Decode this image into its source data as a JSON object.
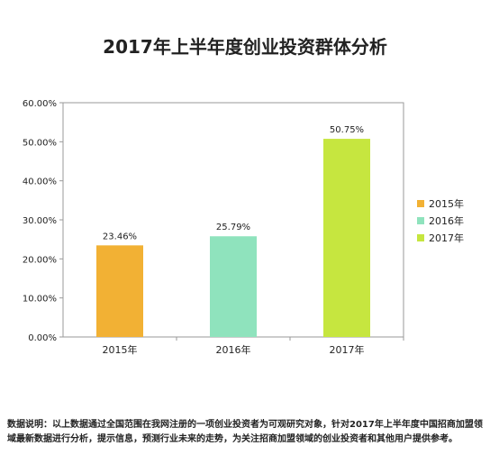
{
  "chart_data": {
    "type": "bar",
    "title": "2017年上半年度创业投资群体分析",
    "categories": [
      "2015年",
      "2016年",
      "2017年"
    ],
    "values": [
      23.46,
      25.79,
      50.75
    ],
    "value_labels": [
      "23.46%",
      "25.79%",
      "50.75%"
    ],
    "colors": [
      "#f2b134",
      "#8fe3bd",
      "#c6e63f"
    ],
    "ylim": [
      0,
      60
    ],
    "yticks": [
      "0.00%",
      "10.00%",
      "20.00%",
      "30.00%",
      "40.00%",
      "50.00%",
      "60.00%"
    ],
    "legend": {
      "placement": "right",
      "entries": [
        "2015年",
        "2016年",
        "2017年"
      ]
    },
    "xlabel": "",
    "ylabel": "",
    "grid": false
  },
  "footnote": "数据说明：以上数据通过全国范围在我网注册的一项创业投资者为可观研究对象，针对2017年上半年度中国招商加盟领域最新数据进行分析，提示信息，预测行业未来的走势，为关注招商加盟领域的创业投资者和其他用户提供参考。"
}
